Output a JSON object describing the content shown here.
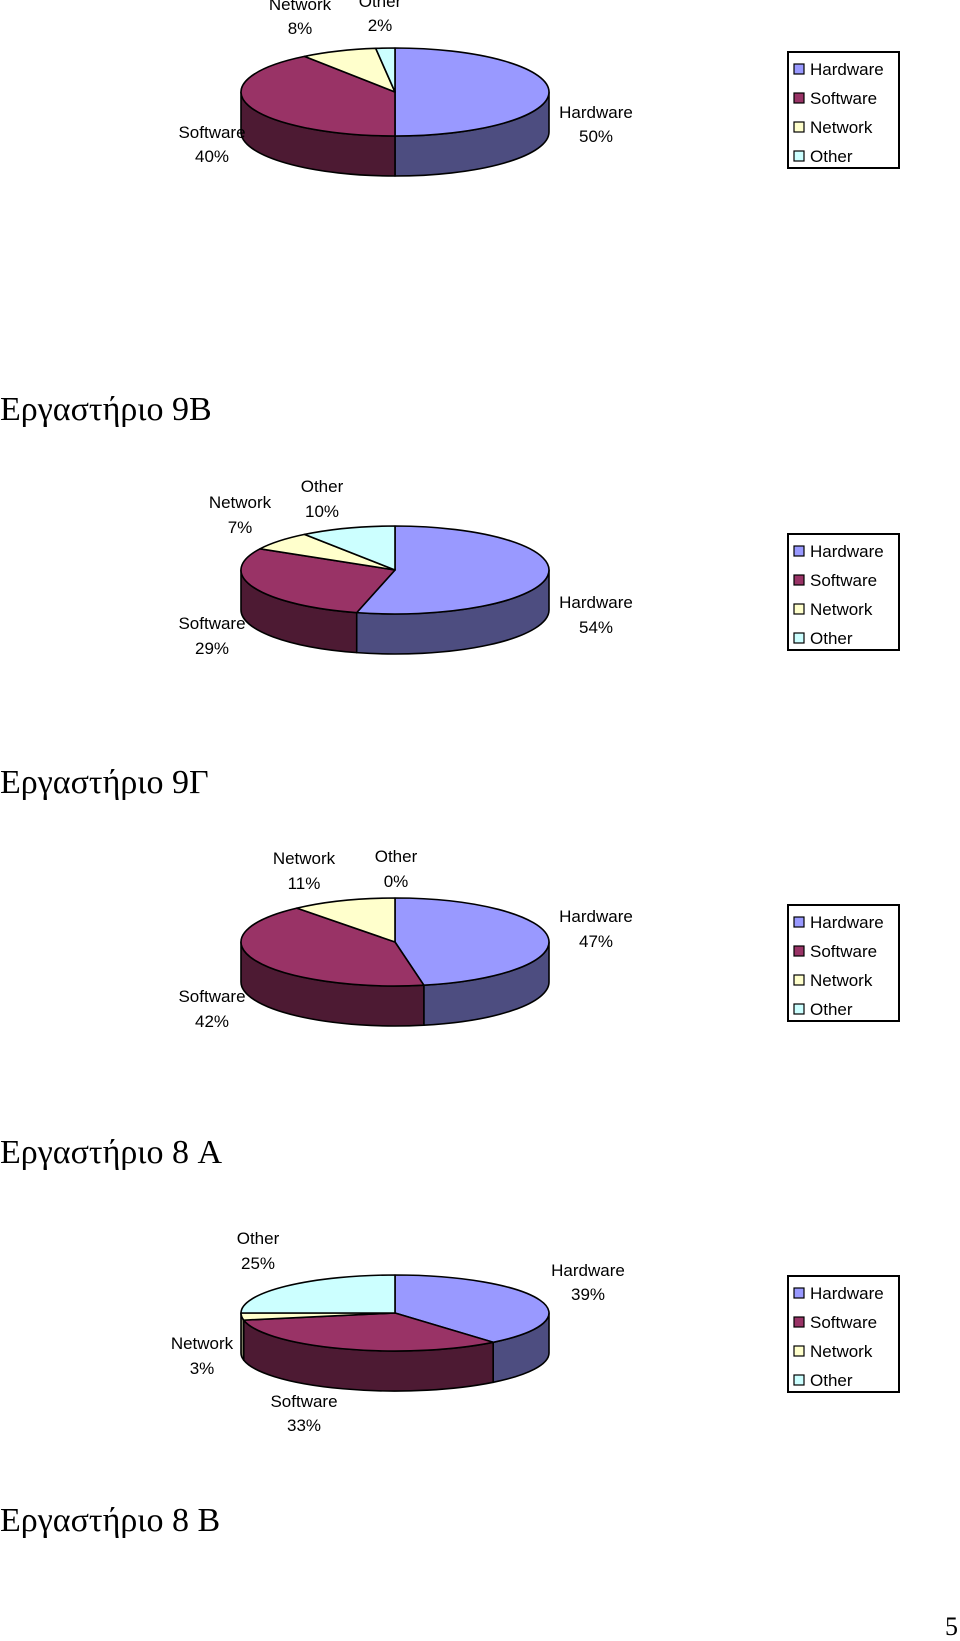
{
  "headings": [
    "Εργαστήριο 9B",
    "Εργαστήριο 9Γ",
    "Εργαστήριο 8 A",
    "Εργαστήριο 8 B"
  ],
  "page_number": "5",
  "colors": {
    "Hardware": "#9999ff",
    "Software": "#993366",
    "Network": "#ffffcc",
    "Other": "#ccffff"
  },
  "chart_data": [
    {
      "type": "pie",
      "categories": [
        "Hardware",
        "Software",
        "Network",
        "Other"
      ],
      "values": [
        50,
        40,
        8,
        2
      ],
      "data_labels": [
        "50%",
        "40%",
        "8%",
        "2%"
      ],
      "legend": [
        "Hardware",
        "Software",
        "Network",
        "Other"
      ],
      "legend_position": "right"
    },
    {
      "type": "pie",
      "categories": [
        "Hardware",
        "Software",
        "Network",
        "Other"
      ],
      "values": [
        54,
        29,
        7,
        10
      ],
      "data_labels": [
        "54%",
        "29%",
        "7%",
        "10%"
      ],
      "legend": [
        "Hardware",
        "Software",
        "Network",
        "Other"
      ],
      "legend_position": "right"
    },
    {
      "type": "pie",
      "categories": [
        "Hardware",
        "Software",
        "Network",
        "Other"
      ],
      "values": [
        47,
        42,
        11,
        0
      ],
      "data_labels": [
        "47%",
        "42%",
        "11%",
        "0%"
      ],
      "legend": [
        "Hardware",
        "Software",
        "Network",
        "Other"
      ],
      "legend_position": "right"
    },
    {
      "type": "pie",
      "categories": [
        "Hardware",
        "Software",
        "Network",
        "Other"
      ],
      "values": [
        39,
        33,
        3,
        25
      ],
      "data_labels": [
        "39%",
        "33%",
        "3%",
        "25%"
      ],
      "legend": [
        "Hardware",
        "Software",
        "Network",
        "Other"
      ],
      "legend_position": "right"
    }
  ]
}
